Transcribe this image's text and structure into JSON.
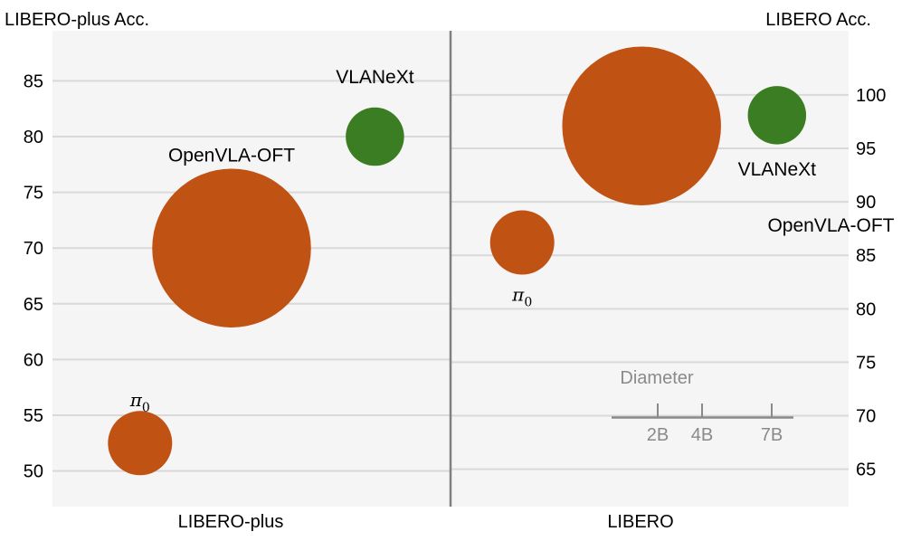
{
  "chart_data": [
    {
      "type": "scatter",
      "panel": "left",
      "ylabel": "LIBERO-plus Acc.",
      "xlabel": "LIBERO-plus",
      "ylim": [
        46.8,
        89.5
      ],
      "yticks": [
        50,
        55,
        60,
        65,
        70,
        75,
        80,
        85
      ],
      "grid": true,
      "points": [
        {
          "label": "π",
          "label_sub": "0",
          "x": 0.22,
          "y": 52.5,
          "size_B": 2,
          "color": "#c05214"
        },
        {
          "label": "OpenVLA-OFT",
          "x": 0.45,
          "y": 70,
          "size_B": 7,
          "color": "#c05214"
        },
        {
          "label": "VLANeXt",
          "x": 0.81,
          "y": 80,
          "size_B": 1,
          "color": "#3b7d23"
        }
      ]
    },
    {
      "type": "scatter",
      "panel": "right",
      "ylabel": "LIBERO Acc.",
      "xlabel": "LIBERO",
      "ylim": [
        61.5,
        106.0
      ],
      "yticks": [
        65,
        70,
        75,
        80,
        85,
        90,
        95,
        100
      ],
      "grid": true,
      "points": [
        {
          "label": "π",
          "label_sub": "0",
          "x": 0.18,
          "y": 86.2,
          "size_B": 2,
          "color": "#c05214"
        },
        {
          "label": "OpenVLA-OFT",
          "x": 0.48,
          "y": 97.1,
          "size_B": 7,
          "color": "#c05214"
        },
        {
          "label": "VLANeXt",
          "x": 0.82,
          "y": 98.1,
          "size_B": 1,
          "color": "#3b7d23"
        }
      ]
    }
  ],
  "legend": {
    "title": "Diameter",
    "ticks": [
      "2B",
      "4B",
      "7B"
    ]
  },
  "colors": {
    "background": "#f5f5f5",
    "grid": "#d9d9d9",
    "divider": "#808080",
    "legend": "#8a8a8a"
  }
}
